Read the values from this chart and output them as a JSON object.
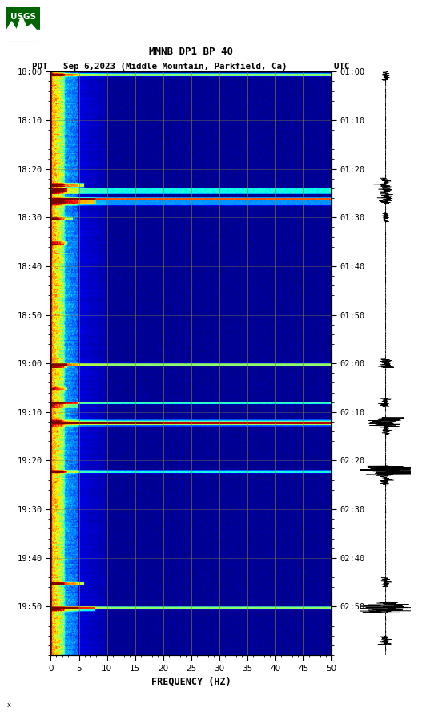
{
  "title_line1": "MMNB DP1 BP 40",
  "title_line2": "PDT   Sep 6,2023 (Middle Mountain, Parkfield, Ca)         UTC",
  "xlabel": "FREQUENCY (HZ)",
  "freq_min": 0,
  "freq_max": 50,
  "freq_ticks": [
    0,
    5,
    10,
    15,
    20,
    25,
    30,
    35,
    40,
    45,
    50
  ],
  "time_left_labels": [
    "18:00",
    "18:10",
    "18:20",
    "18:30",
    "18:40",
    "18:50",
    "19:00",
    "19:10",
    "19:20",
    "19:30",
    "19:40",
    "19:50"
  ],
  "time_right_labels": [
    "01:00",
    "01:10",
    "01:20",
    "01:30",
    "01:40",
    "01:50",
    "02:00",
    "02:10",
    "02:20",
    "02:30",
    "02:40",
    "02:50"
  ],
  "n_time_rows": 600,
  "n_freq_cols": 500,
  "fig_bg": "#ffffff",
  "vertical_grid_freqs": [
    5,
    10,
    15,
    20,
    25,
    30,
    35,
    40,
    45
  ],
  "grid_color": "#8B8040",
  "usgs_logo_color": "#006400"
}
